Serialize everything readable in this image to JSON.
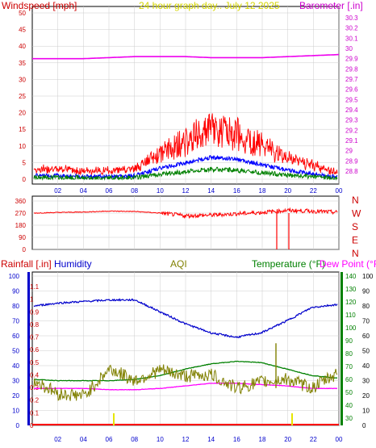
{
  "title": "24 hour graph day.. July 12 2025",
  "colors": {
    "wind": "#ff0000",
    "gust": "#ff0000",
    "avgwind": "#0000ff",
    "lowwind": "#008000",
    "baro": "#ee00ee",
    "dir": "#ff0000",
    "humidity": "#0000cc",
    "aqi": "#808000",
    "temp": "#008000",
    "dew": "#ff00ff",
    "rain": "#ff0000",
    "axis_red": "#cc0000",
    "axis_mag": "#cc00cc",
    "axis_blue": "#0000cc",
    "axis_green": "#008000",
    "grid": "#cccccc"
  },
  "top": {
    "left_label": "Windspeed [mph]",
    "right_label": "Barometer [.in]",
    "left_ticks": [
      "50",
      "45",
      "40",
      "35",
      "30",
      "25",
      "20",
      "15",
      "10",
      "5",
      "0"
    ],
    "right_ticks": [
      "30.3",
      "30.2",
      "30.1",
      "30",
      "29.9",
      "29.8",
      "29.7",
      "29.6",
      "29.5",
      "29.4",
      "29.3",
      "29.2",
      "29.1",
      "29",
      "28.9",
      "28.8"
    ]
  },
  "dir": {
    "left_ticks": [
      "360",
      "270",
      "180",
      "90",
      "0"
    ],
    "right_ticks": [
      "N",
      "W",
      "S",
      "E",
      "N"
    ]
  },
  "bottom": {
    "label_rain": "Rainfall [.in]",
    "label_hum": "Humidity",
    "label_aqi": "AQI",
    "label_temp": "Temperature (°F)",
    "label_dew": "Dew Point (°F)",
    "hum_ticks": [
      "100",
      "90",
      "80",
      "70",
      "60",
      "50",
      "40",
      "30",
      "20",
      "10",
      "0"
    ],
    "rain_ticks": [
      "1.1",
      "1",
      "0.9",
      "0.8",
      "0.7",
      "0.6",
      "0.5",
      "0.4",
      "0.3",
      "0.2",
      "0.1",
      "0"
    ],
    "temp_ticks": [
      "140",
      "130",
      "120",
      "110",
      "100",
      "90",
      "80",
      "70",
      "60",
      "50",
      "40",
      "30"
    ],
    "aqi_ticks": [
      "100",
      "90",
      "80",
      "70",
      "60",
      "50",
      "40",
      "30",
      "20",
      "10",
      "0"
    ]
  },
  "x_ticks": [
    "02",
    "04",
    "06",
    "08",
    "10",
    "12",
    "14",
    "16",
    "18",
    "20",
    "22",
    "00"
  ],
  "chart_data": [
    {
      "type": "line",
      "x": [
        "00",
        "02",
        "04",
        "06",
        "08",
        "10",
        "12",
        "14",
        "16",
        "18",
        "20",
        "22",
        "00"
      ],
      "series": [
        {
          "name": "Windspeed [mph]",
          "values": [
            2,
            2,
            1.5,
            1.5,
            2,
            6,
            9,
            12,
            11,
            8,
            5,
            3,
            1
          ]
        },
        {
          "name": "Barometer [.in]",
          "values": [
            29.9,
            29.9,
            29.9,
            29.91,
            29.92,
            29.92,
            29.92,
            29.91,
            29.91,
            29.91,
            29.92,
            29.93,
            29.94
          ]
        }
      ],
      "ylim": [
        0,
        50
      ]
    },
    {
      "type": "line",
      "x": [
        "00",
        "02",
        "04",
        "06",
        "08",
        "10",
        "12",
        "14",
        "16",
        "18",
        "20",
        "22",
        "00"
      ],
      "series": [
        {
          "name": "Wind direction",
          "values": [
            270,
            275,
            278,
            285,
            282,
            270,
            250,
            255,
            265,
            275,
            290,
            285,
            275
          ]
        }
      ],
      "ylim": [
        0,
        360
      ]
    },
    {
      "type": "line",
      "x": [
        "00",
        "02",
        "04",
        "06",
        "08",
        "10",
        "12",
        "14",
        "16",
        "18",
        "20",
        "22",
        "00"
      ],
      "series": [
        {
          "name": "Humidity",
          "values": [
            80,
            82,
            83,
            84,
            84,
            76,
            68,
            62,
            59,
            62,
            70,
            79,
            81
          ]
        },
        {
          "name": "AQI",
          "values": [
            30,
            21,
            20,
            38,
            30,
            37,
            33,
            34,
            25,
            29,
            31,
            25,
            35
          ]
        },
        {
          "name": "Temperature (°F)",
          "values": [
            60,
            59,
            59,
            59,
            60,
            63,
            68,
            72,
            74,
            73,
            68,
            63,
            61
          ]
        },
        {
          "name": "Dew Point (°F)",
          "values": [
            53,
            53,
            53,
            52,
            52,
            53,
            55,
            57,
            57,
            56,
            55,
            53,
            53
          ]
        },
        {
          "name": "Rainfall [.in]",
          "values": [
            0,
            0,
            0,
            0,
            0,
            0,
            0,
            0,
            0,
            0,
            0,
            0,
            0
          ]
        }
      ]
    }
  ]
}
